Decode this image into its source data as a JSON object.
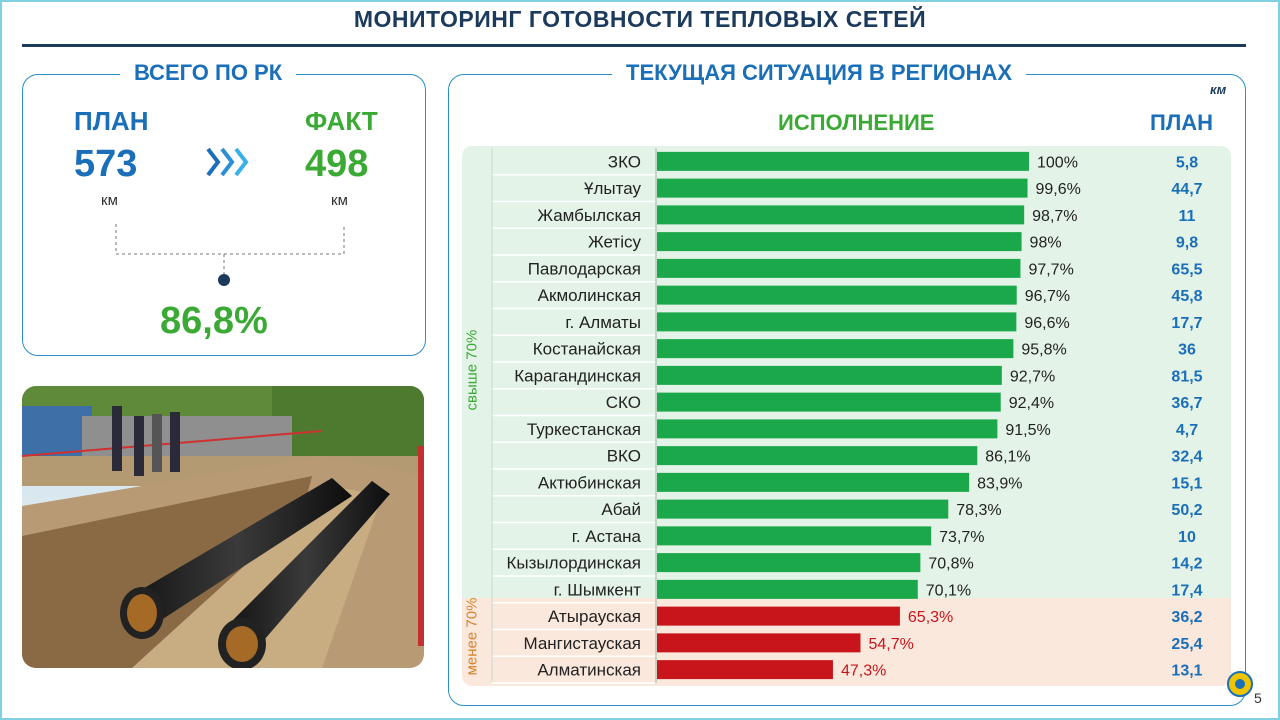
{
  "title": "МОНИТОРИНГ ГОТОВНОСТИ ТЕПЛОВЫХ СЕТЕЙ",
  "total": {
    "heading": "ВСЕГО ПО РК",
    "plan_label": "ПЛАН",
    "plan_value": "573",
    "plan_unit": "км",
    "fact_label": "ФАКТ",
    "fact_value": "498",
    "fact_unit": "км",
    "percent": "86,8%"
  },
  "regions": {
    "heading": "ТЕКУЩАЯ СИТУАЦИЯ В РЕГИОНАХ",
    "unit": "км",
    "col_execution": "ИСПОЛНЕНИЕ",
    "col_plan": "ПЛАН",
    "band_above": "свыше 70%",
    "band_below": "менее 70%"
  },
  "chart_data": {
    "type": "bar",
    "orientation": "horizontal",
    "categories": [
      "ЗКО",
      "Ұлытау",
      "Жамбылская",
      "Жетісу",
      "Павлодарская",
      "Акмолинская",
      "г. Алматы",
      "Костанайская",
      "Карагандинская",
      "СКО",
      "Туркестанская",
      "ВКО",
      "Актюбинская",
      "Абай",
      "г. Астана",
      "Кызылординская",
      "г. Шымкент",
      "Атырауская",
      "Мангистауская",
      "Алматинская"
    ],
    "values": [
      100,
      99.6,
      98.7,
      98,
      97.7,
      96.7,
      96.6,
      95.8,
      92.7,
      92.4,
      91.5,
      86.1,
      83.9,
      78.3,
      73.7,
      70.8,
      70.1,
      65.3,
      54.7,
      47.3
    ],
    "value_labels": [
      "100%",
      "99,6%",
      "98,7%",
      "98%",
      "97,7%",
      "96,7%",
      "96,6%",
      "95,8%",
      "92,7%",
      "92,4%",
      "91,5%",
      "86,1%",
      "83,9%",
      "78,3%",
      "73,7%",
      "70,8%",
      "70,1%",
      "65,3%",
      "54,7%",
      "47,3%"
    ],
    "plan_km": [
      "5,8",
      "44,7",
      "11",
      "9,8",
      "65,5",
      "45,8",
      "17,7",
      "36",
      "81,5",
      "36,7",
      "4,7",
      "32,4",
      "15,1",
      "50,2",
      "10",
      "14,2",
      "17,4",
      "36,2",
      "25,4",
      "13,1"
    ],
    "xlim": [
      0,
      100
    ],
    "threshold": 70,
    "colors": {
      "above": "#1aa84a",
      "below": "#c8151b",
      "plan_text": "#1a6fb8",
      "band_above": "#e4f3e8",
      "band_below": "#fbe8dd"
    }
  },
  "page_number": "5"
}
